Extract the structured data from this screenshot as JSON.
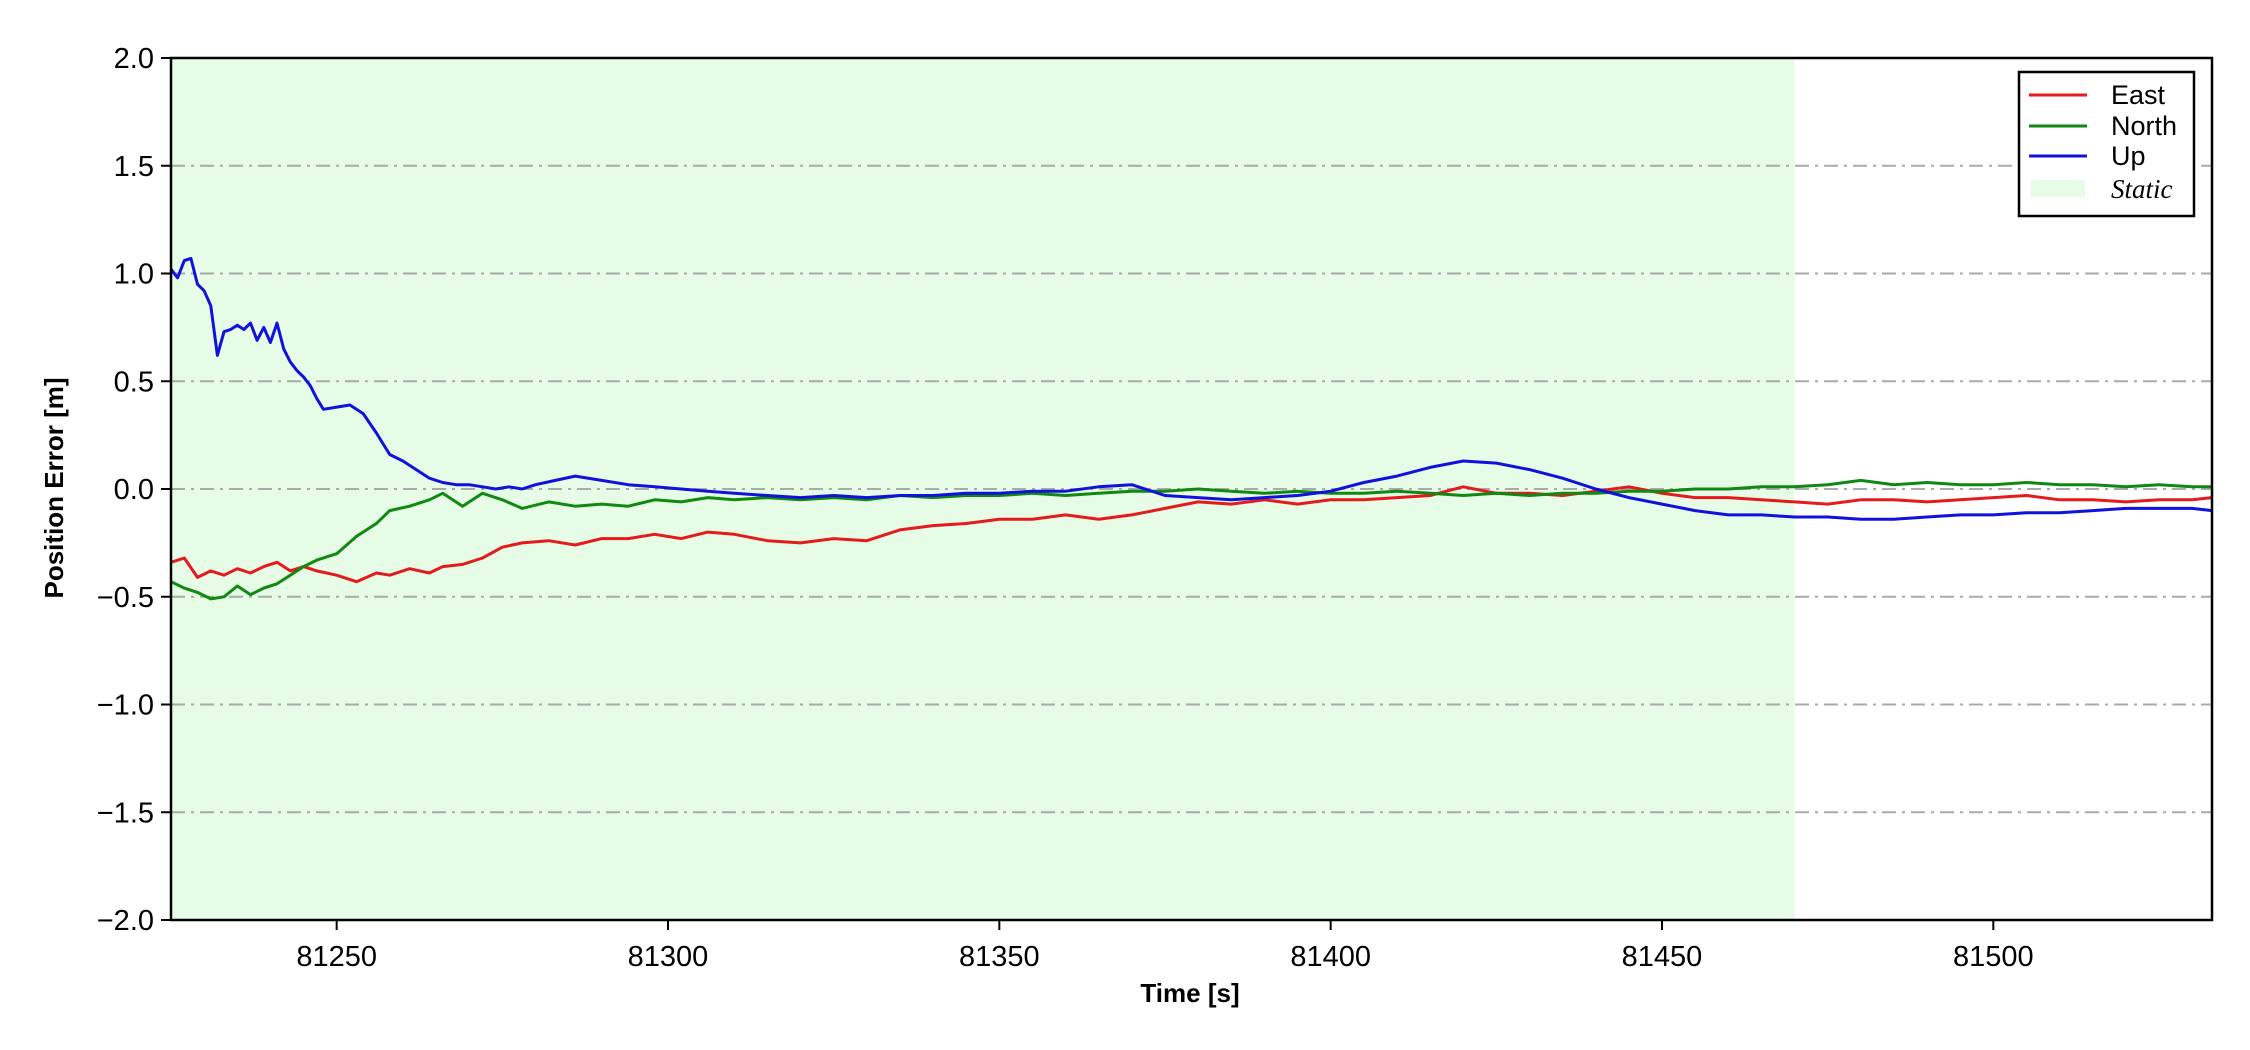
{
  "chart_data": {
    "type": "line",
    "xlabel": "Time [s]",
    "ylabel": "Position Error [m]",
    "xlim": [
      81225,
      81533
    ],
    "ylim": [
      -2.0,
      2.0
    ],
    "x_ticks": [
      81250,
      81300,
      81350,
      81400,
      81450,
      81500
    ],
    "x_tick_labels": [
      "81250",
      "81300",
      "81350",
      "81400",
      "81450",
      "81500"
    ],
    "y_ticks": [
      2.0,
      1.5,
      1.0,
      0.5,
      0.0,
      -0.5,
      -1.0,
      -1.5,
      -2.0
    ],
    "y_tick_labels": [
      "2.0",
      "1.5",
      "1.0",
      "0.5",
      "0.0",
      "−0.5",
      "−1.0",
      "−1.5",
      "−2.0"
    ],
    "grid": "horizontal dash-dot",
    "legend_position": "top-right",
    "shaded_region": {
      "label": "Static",
      "x_start": 81225,
      "x_end": 81470,
      "color": "#e6fce6"
    },
    "series": [
      {
        "name": "East",
        "color": "#e41a1c",
        "x": [
          81225,
          81227,
          81229,
          81231,
          81233,
          81235,
          81237,
          81239,
          81241,
          81243,
          81245,
          81247,
          81250,
          81253,
          81256,
          81258,
          81261,
          81264,
          81266,
          81269,
          81272,
          81275,
          81278,
          81282,
          81286,
          81290,
          81294,
          81298,
          81302,
          81306,
          81310,
          81315,
          81320,
          81325,
          81330,
          81335,
          81340,
          81345,
          81350,
          81355,
          81360,
          81365,
          81370,
          81375,
          81380,
          81385,
          81390,
          81395,
          81400,
          81405,
          81410,
          81415,
          81420,
          81425,
          81430,
          81435,
          81440,
          81445,
          81450,
          81455,
          81460,
          81465,
          81470,
          81475,
          81480,
          81485,
          81490,
          81495,
          81500,
          81505,
          81510,
          81515,
          81520,
          81525,
          81530,
          81533
        ],
        "y": [
          -0.34,
          -0.32,
          -0.41,
          -0.38,
          -0.4,
          -0.37,
          -0.39,
          -0.36,
          -0.34,
          -0.38,
          -0.36,
          -0.38,
          -0.4,
          -0.43,
          -0.39,
          -0.4,
          -0.37,
          -0.39,
          -0.36,
          -0.35,
          -0.32,
          -0.27,
          -0.25,
          -0.24,
          -0.26,
          -0.23,
          -0.23,
          -0.21,
          -0.23,
          -0.2,
          -0.21,
          -0.24,
          -0.25,
          -0.23,
          -0.24,
          -0.19,
          -0.17,
          -0.16,
          -0.14,
          -0.14,
          -0.12,
          -0.14,
          -0.12,
          -0.09,
          -0.06,
          -0.07,
          -0.05,
          -0.07,
          -0.05,
          -0.05,
          -0.04,
          -0.03,
          0.01,
          -0.02,
          -0.02,
          -0.03,
          -0.01,
          0.01,
          -0.02,
          -0.04,
          -0.04,
          -0.05,
          -0.06,
          -0.07,
          -0.05,
          -0.05,
          -0.06,
          -0.05,
          -0.04,
          -0.03,
          -0.05,
          -0.05,
          -0.06,
          -0.05,
          -0.05,
          -0.04
        ]
      },
      {
        "name": "North",
        "color": "#118811",
        "x": [
          81225,
          81227,
          81229,
          81231,
          81233,
          81235,
          81237,
          81239,
          81241,
          81243,
          81245,
          81247,
          81250,
          81253,
          81256,
          81258,
          81261,
          81264,
          81266,
          81269,
          81272,
          81275,
          81278,
          81282,
          81286,
          81290,
          81294,
          81298,
          81302,
          81306,
          81310,
          81315,
          81320,
          81325,
          81330,
          81335,
          81340,
          81345,
          81350,
          81355,
          81360,
          81365,
          81370,
          81375,
          81380,
          81385,
          81390,
          81395,
          81400,
          81405,
          81410,
          81415,
          81420,
          81425,
          81430,
          81435,
          81440,
          81445,
          81450,
          81455,
          81460,
          81465,
          81470,
          81475,
          81480,
          81485,
          81490,
          81495,
          81500,
          81505,
          81510,
          81515,
          81520,
          81525,
          81530,
          81533
        ],
        "y": [
          -0.43,
          -0.46,
          -0.48,
          -0.51,
          -0.5,
          -0.45,
          -0.49,
          -0.46,
          -0.44,
          -0.4,
          -0.36,
          -0.33,
          -0.3,
          -0.22,
          -0.16,
          -0.1,
          -0.08,
          -0.05,
          -0.02,
          -0.08,
          -0.02,
          -0.05,
          -0.09,
          -0.06,
          -0.08,
          -0.07,
          -0.08,
          -0.05,
          -0.06,
          -0.04,
          -0.05,
          -0.04,
          -0.05,
          -0.04,
          -0.05,
          -0.03,
          -0.04,
          -0.03,
          -0.03,
          -0.02,
          -0.03,
          -0.02,
          -0.01,
          -0.01,
          0.0,
          -0.01,
          -0.02,
          -0.01,
          -0.02,
          -0.02,
          -0.01,
          -0.02,
          -0.03,
          -0.02,
          -0.03,
          -0.02,
          -0.02,
          -0.01,
          -0.01,
          0.0,
          0.0,
          0.01,
          0.01,
          0.02,
          0.04,
          0.02,
          0.03,
          0.02,
          0.02,
          0.03,
          0.02,
          0.02,
          0.01,
          0.02,
          0.01,
          0.01
        ]
      },
      {
        "name": "Up",
        "color": "#1111dd",
        "x": [
          81225,
          81226,
          81227,
          81228,
          81229,
          81230,
          81231,
          81232,
          81233,
          81234,
          81235,
          81236,
          81237,
          81238,
          81239,
          81240,
          81241,
          81242,
          81243,
          81244,
          81245,
          81246,
          81247,
          81248,
          81250,
          81252,
          81254,
          81256,
          81258,
          81260,
          81262,
          81264,
          81266,
          81268,
          81270,
          81272,
          81274,
          81276,
          81278,
          81280,
          81283,
          81286,
          81290,
          81294,
          81298,
          81302,
          81306,
          81310,
          81315,
          81320,
          81325,
          81330,
          81335,
          81340,
          81345,
          81350,
          81355,
          81360,
          81365,
          81370,
          81375,
          81380,
          81385,
          81390,
          81395,
          81400,
          81405,
          81410,
          81415,
          81420,
          81425,
          81430,
          81435,
          81440,
          81445,
          81450,
          81455,
          81460,
          81465,
          81470,
          81475,
          81480,
          81485,
          81490,
          81495,
          81500,
          81505,
          81510,
          81515,
          81520,
          81525,
          81530,
          81533
        ],
        "y": [
          1.02,
          0.98,
          1.06,
          1.07,
          0.95,
          0.92,
          0.85,
          0.62,
          0.73,
          0.74,
          0.76,
          0.74,
          0.77,
          0.69,
          0.75,
          0.68,
          0.77,
          0.65,
          0.59,
          0.55,
          0.52,
          0.48,
          0.42,
          0.37,
          0.38,
          0.39,
          0.35,
          0.26,
          0.16,
          0.13,
          0.09,
          0.05,
          0.03,
          0.02,
          0.02,
          0.01,
          0.0,
          0.01,
          0.0,
          0.02,
          0.04,
          0.06,
          0.04,
          0.02,
          0.01,
          0.0,
          -0.01,
          -0.02,
          -0.03,
          -0.04,
          -0.03,
          -0.04,
          -0.03,
          -0.03,
          -0.02,
          -0.02,
          -0.01,
          -0.01,
          0.01,
          0.02,
          -0.03,
          -0.04,
          -0.05,
          -0.04,
          -0.03,
          -0.01,
          0.03,
          0.06,
          0.1,
          0.13,
          0.12,
          0.09,
          0.05,
          0.0,
          -0.04,
          -0.07,
          -0.1,
          -0.12,
          -0.12,
          -0.13,
          -0.13,
          -0.14,
          -0.14,
          -0.13,
          -0.12,
          -0.12,
          -0.11,
          -0.11,
          -0.1,
          -0.09,
          -0.09,
          -0.09,
          -0.1
        ]
      }
    ]
  }
}
